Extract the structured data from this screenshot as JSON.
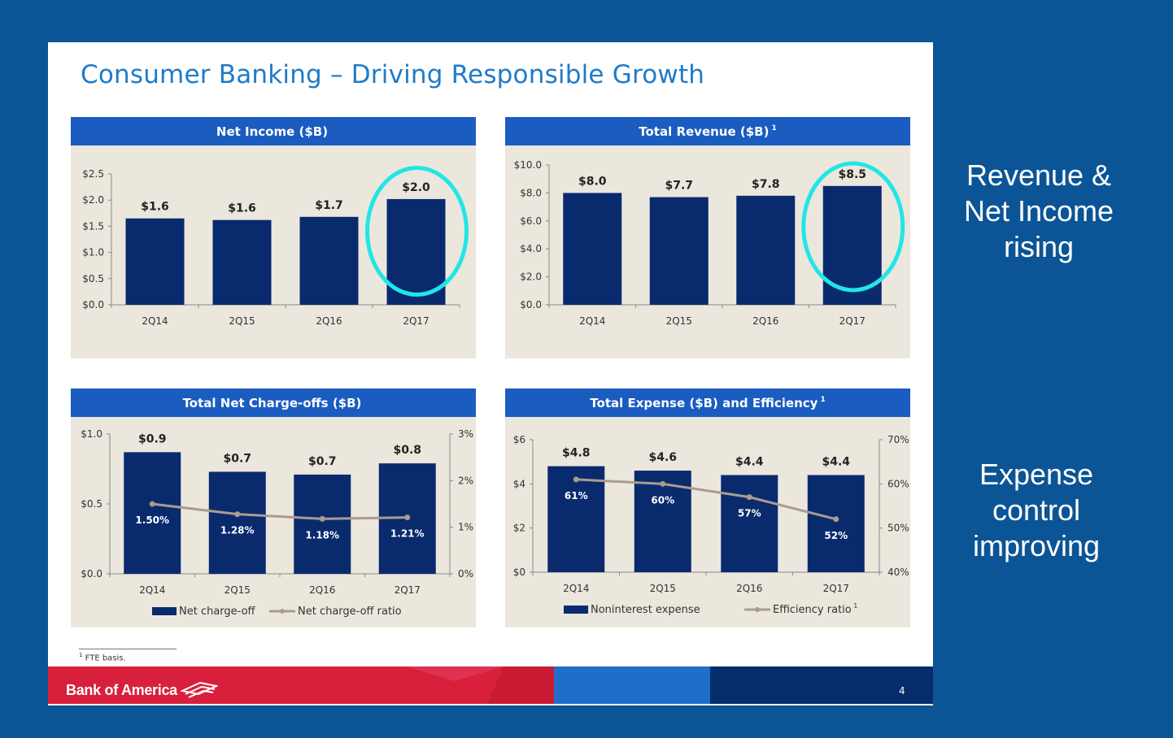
{
  "slide": {
    "title": "Consumer Banking – Driving Responsible Growth",
    "footnote_mark": "1",
    "footnote_text": "FTE basis.",
    "brand": "Bank of America",
    "page_number": "4"
  },
  "callouts": {
    "top": [
      "Revenue &",
      "Net Income",
      "rising"
    ],
    "bottom": [
      "Expense",
      "control",
      "improving"
    ]
  },
  "colors": {
    "background": "#0b5596",
    "bar": "#0a2a6e",
    "line": "#a99c8e",
    "highlight": "#22e6e6",
    "panel_header": "#1a5cc0",
    "panel_bg": "#ebe7dd"
  },
  "chart_data": [
    {
      "type": "bar",
      "title": "Net Income ($B)",
      "title_sup": "",
      "categories": [
        "2Q14",
        "2Q15",
        "2Q16",
        "2Q17"
      ],
      "values": [
        1.65,
        1.62,
        1.68,
        2.02
      ],
      "data_labels": [
        "$1.6",
        "$1.6",
        "$1.7",
        "$2.0"
      ],
      "ylim": [
        0,
        2.5
      ],
      "yticks": [
        "$0.0",
        "$0.5",
        "$1.0",
        "$1.5",
        "$2.0",
        "$2.5"
      ],
      "highlight_index": 3
    },
    {
      "type": "bar",
      "title": "Total Revenue ($B)",
      "title_sup": "1",
      "categories": [
        "2Q14",
        "2Q15",
        "2Q16",
        "2Q17"
      ],
      "values": [
        8.0,
        7.7,
        7.8,
        8.5
      ],
      "data_labels": [
        "$8.0",
        "$7.7",
        "$7.8",
        "$8.5"
      ],
      "ylim": [
        0,
        10
      ],
      "yticks": [
        "$0.0",
        "$2.0",
        "$4.0",
        "$6.0",
        "$8.0",
        "$10.0"
      ],
      "highlight_index": 3
    },
    {
      "type": "bar",
      "title": "Total Net Charge-offs ($B)",
      "title_sup": "",
      "categories": [
        "2Q14",
        "2Q15",
        "2Q16",
        "2Q17"
      ],
      "series": [
        {
          "name": "Net charge-off",
          "values": [
            0.87,
            0.73,
            0.71,
            0.79
          ],
          "data_labels": [
            "$0.9",
            "$0.7",
            "$0.7",
            "$0.8"
          ]
        },
        {
          "name": "Net charge-off ratio",
          "axis": "right",
          "values": [
            1.5,
            1.28,
            1.18,
            1.21
          ],
          "data_labels": [
            "1.50%",
            "1.28%",
            "1.18%",
            "1.21%"
          ]
        }
      ],
      "ylim": [
        0,
        1.0
      ],
      "yticks": [
        "$0.0",
        "$0.5",
        "$1.0"
      ],
      "y2lim": [
        0,
        3
      ],
      "y2ticks": [
        "0%",
        "1%",
        "2%",
        "3%"
      ],
      "legend": "bottom"
    },
    {
      "type": "bar",
      "title": "Total Expense ($B) and Efficiency",
      "title_sup": "1",
      "categories": [
        "2Q14",
        "2Q15",
        "2Q16",
        "2Q17"
      ],
      "series": [
        {
          "name": "Noninterest expense",
          "values": [
            4.8,
            4.6,
            4.4,
            4.4
          ],
          "data_labels": [
            "$4.8",
            "$4.6",
            "$4.4",
            "$4.4"
          ]
        },
        {
          "name": "Efficiency ratio",
          "name_sup": "1",
          "axis": "right",
          "values": [
            61,
            60,
            57,
            52
          ],
          "data_labels": [
            "61%",
            "60%",
            "57%",
            "52%"
          ]
        }
      ],
      "ylim": [
        0,
        6
      ],
      "yticks": [
        "$0",
        "$2",
        "$4",
        "$6"
      ],
      "y2lim": [
        40,
        70
      ],
      "y2ticks": [
        "40%",
        "50%",
        "60%",
        "70%"
      ],
      "legend": "bottom"
    }
  ]
}
